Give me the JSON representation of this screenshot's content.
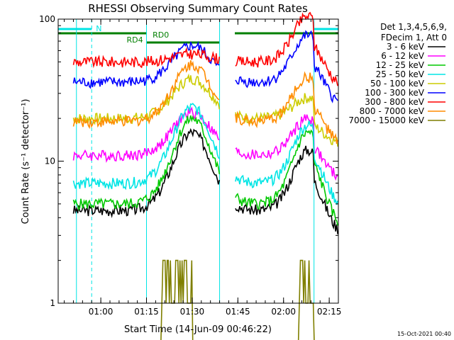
{
  "chart_data": {
    "type": "line",
    "title": "RHESSI Observing Summary Count Rates",
    "xlabel": "Start Time (14-Jun-09 00:46:22)",
    "ylabel": "Count Rate (s⁻¹ detector⁻¹)",
    "y_scale": "log",
    "ylim": [
      1,
      100
    ],
    "xlim_minutes": [
      0,
      92
    ],
    "x_ticks": [
      {
        "minute": 14,
        "label": "01:00"
      },
      {
        "minute": 29,
        "label": "01:15"
      },
      {
        "minute": 44,
        "label": "01:30"
      },
      {
        "minute": 59,
        "label": "01:45"
      },
      {
        "minute": 74,
        "label": "02:00"
      },
      {
        "minute": 89,
        "label": "02:15"
      }
    ],
    "y_ticks": [
      {
        "value": 1,
        "label": "1"
      },
      {
        "value": 10,
        "label": "10"
      },
      {
        "value": 100,
        "label": "100"
      }
    ],
    "legend_header": [
      "Det 1,3,4,5,6,9,",
      "FDecim 1, Att 0"
    ],
    "legend_position": "right",
    "annotations": {
      "night_label": "N",
      "rd_labels": [
        "RD4",
        "RD0"
      ],
      "night_intervals": [
        [
          0,
          11
        ],
        [
          84,
          92
        ]
      ],
      "rd_intervals": [
        [
          0,
          29
        ],
        [
          29,
          53
        ],
        [
          58,
          92
        ]
      ],
      "vertical_markers": [
        6,
        11,
        29,
        53,
        84,
        92
      ]
    },
    "series": [
      {
        "name": "3 - 6 keV",
        "color": "#000000",
        "base": 4.5,
        "peak1": 16,
        "peak2": 12
      },
      {
        "name": "6 - 12 keV",
        "color": "#ff00ff",
        "base": 11,
        "peak1": 22,
        "peak2": 20
      },
      {
        "name": "12 - 25 keV",
        "color": "#00c800",
        "base": 5,
        "peak1": 20,
        "peak2": 16
      },
      {
        "name": "25 - 50 keV",
        "color": "#00e5e5",
        "base": 7,
        "peak1": 24,
        "peak2": 18
      },
      {
        "name": "50 - 100 keV",
        "color": "#cccc00",
        "base": 20,
        "peak1": 38,
        "peak2": 28
      },
      {
        "name": "100 - 300 keV",
        "color": "#0000ff",
        "base": 36,
        "peak1": 65,
        "peak2": 77
      },
      {
        "name": "300 - 800 keV",
        "color": "#ff0000",
        "base": 50,
        "peak1": 57,
        "peak2": 105
      },
      {
        "name": "800 - 7000 keV",
        "color": "#ff8c00",
        "base": 19,
        "peak1": 48,
        "peak2": 39
      },
      {
        "name": "7000 - 15000 keV",
        "color": "#7f7f00",
        "base": 1,
        "peak1": 2,
        "peak2": 2
      }
    ]
  },
  "footer": {
    "timestamp": "15-Oct-2021 00:40"
  }
}
